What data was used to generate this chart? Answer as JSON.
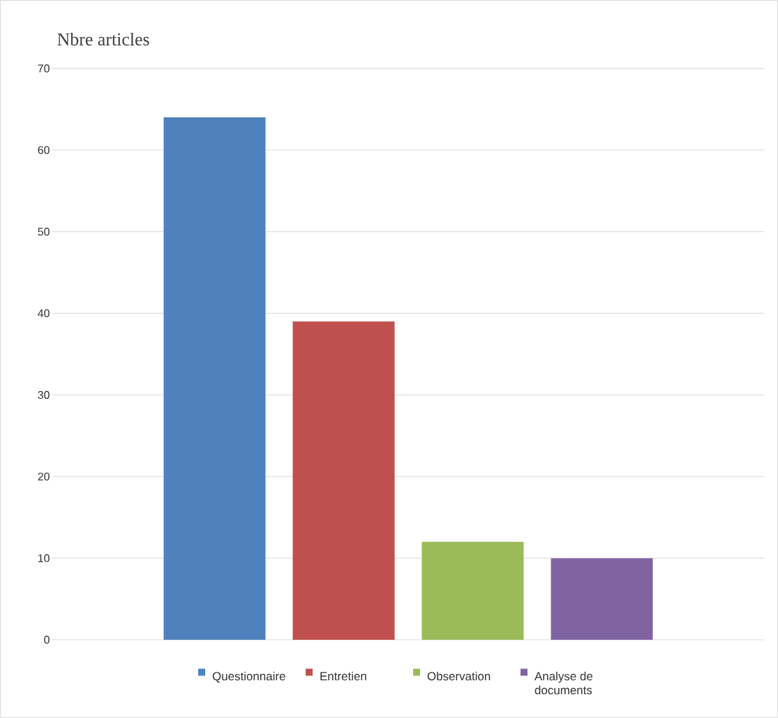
{
  "chart_data": {
    "type": "bar",
    "title": "Nbre articles",
    "categories": [
      null
    ],
    "series": [
      {
        "name": "Questionnaire",
        "color": "#4f81bd",
        "values": [
          64
        ]
      },
      {
        "name": "Entretien",
        "color": "#c0504d",
        "values": [
          39
        ]
      },
      {
        "name": "Observation",
        "color": "#9bbb59",
        "values": [
          12
        ]
      },
      {
        "name": "Analyse de documents",
        "color": "#8064a2",
        "values": [
          10
        ]
      }
    ],
    "ylim": [
      0,
      70
    ],
    "yticks": [
      0,
      10,
      20,
      30,
      40,
      50,
      60,
      70
    ],
    "grid": "y",
    "legend": "bottom"
  }
}
